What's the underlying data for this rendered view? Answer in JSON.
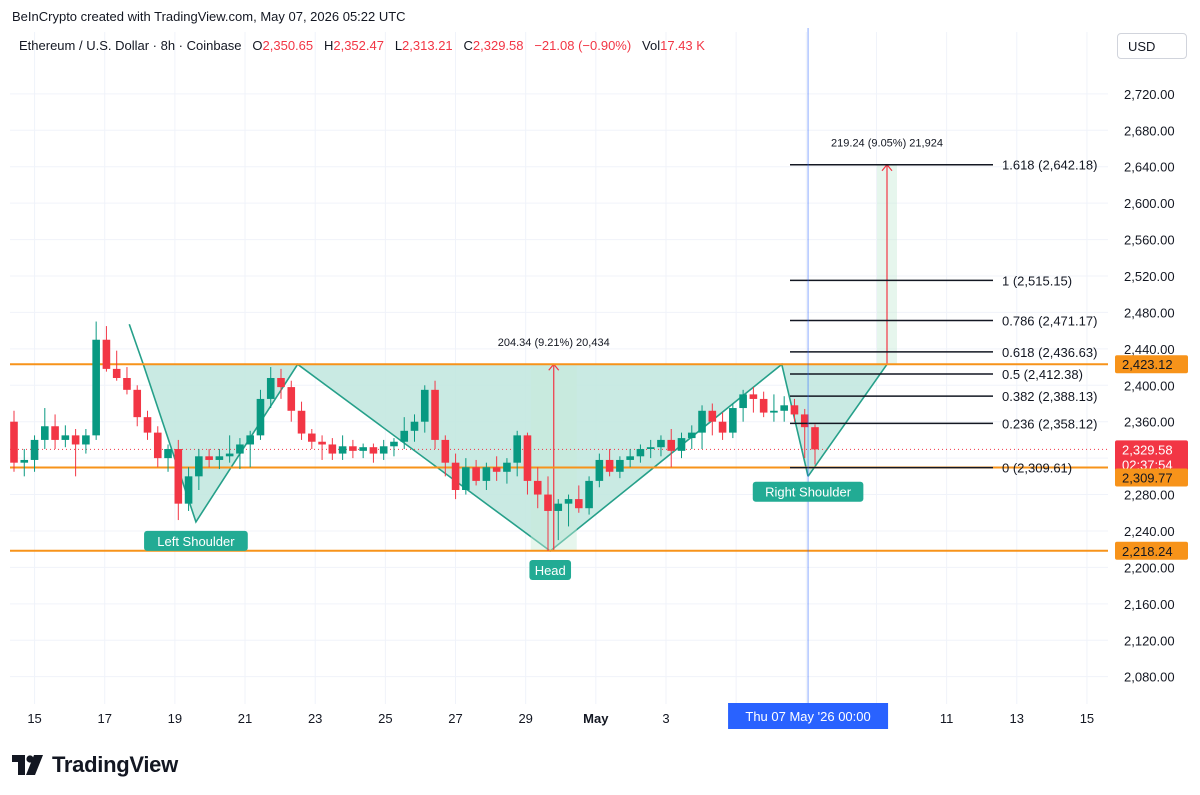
{
  "credit": "BeInCrypto created with TradingView.com, May 07, 2026 05:22 UTC",
  "legend": {
    "symbol": "Ethereum / U.S. Dollar · 8h · Coinbase",
    "o_label": "O",
    "o": "2,350.65",
    "h_label": "H",
    "h": "2,352.47",
    "l_label": "L",
    "l": "2,313.21",
    "c_label": "C",
    "c": "2,329.58",
    "change": "−21.08 (−0.90%)",
    "vol_label": "Vol",
    "vol": "17.43 K"
  },
  "currency": "USD",
  "brand": {
    "name": "TradingView",
    "logo_icon": "tradingview-logo-icon"
  },
  "colors": {
    "up": "#089981",
    "down": "#f23645",
    "orange": "#f7931a",
    "pattern_fill": "#bfe6de",
    "pattern_line": "#26a08a",
    "cursor": "#2962ff"
  },
  "chart_data": {
    "type": "candlestick",
    "title": "",
    "ylim": [
      2050,
      2755
    ],
    "y_ticks": [
      2080,
      2120,
      2160,
      2200,
      2240,
      2280,
      2320,
      2360,
      2400,
      2440,
      2480,
      2520,
      2560,
      2600,
      2640,
      2680,
      2720
    ],
    "y_tick_labels": [
      "2,080.00",
      "2,120.00",
      "2,160.00",
      "2,200.00",
      "2,240.00",
      "2,280.00",
      "2,320.00",
      "2,360.00",
      "2,400.00",
      "2,440.00",
      "2,480.00",
      "2,520.00",
      "2,560.00",
      "2,600.00",
      "2,640.00",
      "2,680.00",
      "2,720.00"
    ],
    "x_ticks": [
      {
        "day": 15,
        "label": "15"
      },
      {
        "day": 17,
        "label": "17"
      },
      {
        "day": 19,
        "label": "19"
      },
      {
        "day": 21,
        "label": "21"
      },
      {
        "day": 23,
        "label": "23"
      },
      {
        "day": 25,
        "label": "25"
      },
      {
        "day": 27,
        "label": "27"
      },
      {
        "day": 29,
        "label": "29"
      },
      {
        "day": 31,
        "label": "May"
      },
      {
        "day": 33,
        "label": "3"
      },
      {
        "day": 35,
        "label": "5"
      },
      {
        "day": 37,
        "label": "7"
      },
      {
        "day": 39,
        "label": "9"
      },
      {
        "day": 41,
        "label": "11"
      },
      {
        "day": 43,
        "label": "13"
      },
      {
        "day": 45,
        "label": "15"
      }
    ],
    "cursor": {
      "day": 37.05,
      "label": "Thu 07 May '26   00:00"
    },
    "candles_ohlc": [
      [
        2360,
        2372,
        2305,
        2315
      ],
      [
        2315,
        2330,
        2300,
        2318
      ],
      [
        2318,
        2345,
        2305,
        2340
      ],
      [
        2340,
        2375,
        2330,
        2355
      ],
      [
        2355,
        2368,
        2330,
        2340
      ],
      [
        2340,
        2356,
        2332,
        2345
      ],
      [
        2345,
        2352,
        2300,
        2335
      ],
      [
        2335,
        2352,
        2325,
        2345
      ],
      [
        2345,
        2470,
        2340,
        2450
      ],
      [
        2450,
        2465,
        2415,
        2418
      ],
      [
        2418,
        2438,
        2405,
        2408
      ],
      [
        2408,
        2420,
        2390,
        2395
      ],
      [
        2395,
        2400,
        2355,
        2365
      ],
      [
        2365,
        2372,
        2340,
        2348
      ],
      [
        2348,
        2355,
        2310,
        2320
      ],
      [
        2320,
        2335,
        2305,
        2330
      ],
      [
        2330,
        2340,
        2252,
        2270
      ],
      [
        2270,
        2310,
        2262,
        2300
      ],
      [
        2300,
        2330,
        2285,
        2322
      ],
      [
        2322,
        2330,
        2310,
        2318
      ],
      [
        2318,
        2330,
        2308,
        2322
      ],
      [
        2322,
        2345,
        2315,
        2325
      ],
      [
        2325,
        2342,
        2308,
        2335
      ],
      [
        2335,
        2350,
        2310,
        2345
      ],
      [
        2345,
        2395,
        2340,
        2385
      ],
      [
        2385,
        2420,
        2375,
        2408
      ],
      [
        2408,
        2418,
        2385,
        2398
      ],
      [
        2398,
        2405,
        2360,
        2372
      ],
      [
        2372,
        2382,
        2340,
        2347
      ],
      [
        2347,
        2352,
        2330,
        2338
      ],
      [
        2338,
        2345,
        2318,
        2335
      ],
      [
        2335,
        2342,
        2318,
        2325
      ],
      [
        2325,
        2345,
        2318,
        2333
      ],
      [
        2333,
        2340,
        2320,
        2328
      ],
      [
        2328,
        2336,
        2320,
        2332
      ],
      [
        2332,
        2336,
        2315,
        2325
      ],
      [
        2325,
        2340,
        2318,
        2333
      ],
      [
        2333,
        2342,
        2322,
        2338
      ],
      [
        2338,
        2365,
        2330,
        2350
      ],
      [
        2350,
        2368,
        2338,
        2360
      ],
      [
        2360,
        2400,
        2348,
        2395
      ],
      [
        2395,
        2405,
        2330,
        2340
      ],
      [
        2340,
        2345,
        2300,
        2315
      ],
      [
        2315,
        2325,
        2275,
        2285
      ],
      [
        2285,
        2320,
        2280,
        2310
      ],
      [
        2310,
        2318,
        2290,
        2295
      ],
      [
        2295,
        2315,
        2285,
        2310
      ],
      [
        2310,
        2322,
        2295,
        2305
      ],
      [
        2305,
        2320,
        2292,
        2315
      ],
      [
        2315,
        2350,
        2300,
        2345
      ],
      [
        2345,
        2348,
        2280,
        2295
      ],
      [
        2295,
        2310,
        2265,
        2280
      ],
      [
        2280,
        2300,
        2218,
        2262
      ],
      [
        2262,
        2275,
        2230,
        2270
      ],
      [
        2270,
        2280,
        2245,
        2275
      ],
      [
        2275,
        2290,
        2260,
        2265
      ],
      [
        2265,
        2300,
        2258,
        2295
      ],
      [
        2295,
        2325,
        2288,
        2318
      ],
      [
        2318,
        2330,
        2300,
        2305
      ],
      [
        2305,
        2322,
        2298,
        2318
      ],
      [
        2318,
        2330,
        2310,
        2322
      ],
      [
        2322,
        2335,
        2315,
        2330
      ],
      [
        2330,
        2340,
        2320,
        2332
      ],
      [
        2332,
        2345,
        2322,
        2340
      ],
      [
        2340,
        2352,
        2310,
        2328
      ],
      [
        2328,
        2348,
        2320,
        2342
      ],
      [
        2342,
        2356,
        2330,
        2348
      ],
      [
        2348,
        2378,
        2330,
        2372
      ],
      [
        2372,
        2380,
        2345,
        2360
      ],
      [
        2360,
        2370,
        2340,
        2348
      ],
      [
        2348,
        2380,
        2342,
        2375
      ],
      [
        2375,
        2395,
        2360,
        2390
      ],
      [
        2390,
        2398,
        2370,
        2385
      ],
      [
        2385,
        2393,
        2365,
        2370
      ],
      [
        2370,
        2390,
        2360,
        2372
      ],
      [
        2372,
        2388,
        2360,
        2378
      ],
      [
        2378,
        2385,
        2360,
        2368
      ],
      [
        2368,
        2374,
        2320,
        2354
      ],
      [
        2354,
        2357,
        2313,
        2329.58
      ]
    ],
    "horizontal_levels": [
      {
        "price": 2423.12,
        "label": "2,423.12",
        "color": "#f7931a"
      },
      {
        "price": 2309.77,
        "label": "2,309.77",
        "color": "#f7931a"
      },
      {
        "price": 2218.24,
        "label": "2,218.24",
        "color": "#f7931a"
      }
    ],
    "last_price": {
      "price": 2329.58,
      "label": "2,329.58",
      "countdown": "02:37:54",
      "color": "#f23645"
    },
    "fibonacci": [
      {
        "price": 2642.18,
        "label": "1.618 (2,642.18)"
      },
      {
        "price": 2515.15,
        "label": "1 (2,515.15)"
      },
      {
        "price": 2471.17,
        "label": "0.786 (2,471.17)"
      },
      {
        "price": 2436.63,
        "label": "0.618 (2,436.63)"
      },
      {
        "price": 2412.38,
        "label": "0.5 (2,412.38)"
      },
      {
        "price": 2388.13,
        "label": "0.382 (2,388.13)"
      },
      {
        "price": 2358.12,
        "label": "0.236 (2,358.12)"
      },
      {
        "price": 2309.61,
        "label": "0 (2,309.61)"
      }
    ],
    "measures": [
      {
        "label": "204.34 (9.21%) 20,434",
        "from": 2218.24,
        "to": 2423.12,
        "day": 29.8
      },
      {
        "label": "219.24 (9.05%) 21,924",
        "from": 2423.12,
        "to": 2642.18,
        "day": 39.3
      }
    ],
    "pattern_points": [
      {
        "day": 18.1,
        "price": 2423
      },
      {
        "day": 19.6,
        "price": 2250
      },
      {
        "day": 22.5,
        "price": 2423
      },
      {
        "day": 29.7,
        "price": 2218
      },
      {
        "day": 36.3,
        "price": 2423
      },
      {
        "day": 37.05,
        "price": 2300
      },
      {
        "day": 39.3,
        "price": 2423
      }
    ],
    "annotations": [
      {
        "text": "Left Shoulder",
        "day": 19.6,
        "price": 2228
      },
      {
        "text": "Head",
        "day": 29.7,
        "price": 2196
      },
      {
        "text": "Right Shoulder",
        "day": 37.05,
        "price": 2282
      }
    ]
  }
}
